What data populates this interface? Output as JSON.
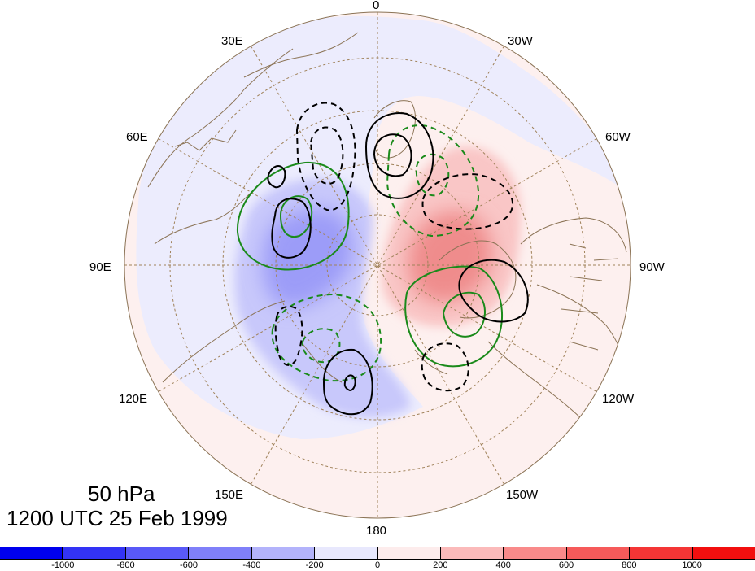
{
  "map": {
    "projection": "north-polar-stereographic",
    "longitude_labels": [
      {
        "text": "0",
        "name": "lon-label-0"
      },
      {
        "text": "30W",
        "name": "lon-label-30w"
      },
      {
        "text": "60W",
        "name": "lon-label-60w"
      },
      {
        "text": "90W",
        "name": "lon-label-90w"
      },
      {
        "text": "120W",
        "name": "lon-label-120w"
      },
      {
        "text": "150W",
        "name": "lon-label-150w"
      },
      {
        "text": "180",
        "name": "lon-label-180"
      },
      {
        "text": "150E",
        "name": "lon-label-150e"
      },
      {
        "text": "120E",
        "name": "lon-label-120e"
      },
      {
        "text": "90E",
        "name": "lon-label-90e"
      },
      {
        "text": "60E",
        "name": "lon-label-60e"
      },
      {
        "text": "30E",
        "name": "lon-label-30e"
      }
    ],
    "coastline_color": "#8b7355",
    "graticule_color": "#a0825a",
    "contours": {
      "black_solid_color": "#000000",
      "green_color": "#1a8a1a"
    }
  },
  "title": {
    "level": "50 hPa",
    "time": "1200 UTC 25 Feb 1999"
  },
  "colorbar": {
    "colors": [
      "#0000ee",
      "#3333f5",
      "#5959f7",
      "#8080f9",
      "#b3b3fb",
      "#e8e8fd",
      "#fdecec",
      "#fbbaba",
      "#f98a8a",
      "#f65a5a",
      "#f43535",
      "#f20f0f"
    ],
    "tick_labels": [
      "-1000",
      "-800",
      "-600",
      "-400",
      "-200",
      "0",
      "200",
      "400",
      "600",
      "800",
      "1000"
    ]
  }
}
